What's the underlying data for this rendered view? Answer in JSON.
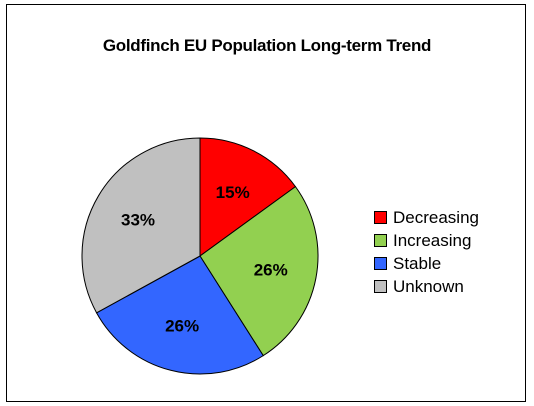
{
  "chart_data": {
    "type": "pie",
    "title": "Goldfinch EU Population Long-term Trend",
    "slices": [
      {
        "label": "Decreasing",
        "value": 15,
        "display": "15%",
        "color": "#ff0000"
      },
      {
        "label": "Increasing",
        "value": 26,
        "display": "26%",
        "color": "#92d050"
      },
      {
        "label": "Stable",
        "value": 26,
        "display": "26%",
        "color": "#3366ff"
      },
      {
        "label": "Unknown",
        "value": 33,
        "display": "33%",
        "color": "#c0c0c0"
      }
    ],
    "legend_position": "right"
  }
}
